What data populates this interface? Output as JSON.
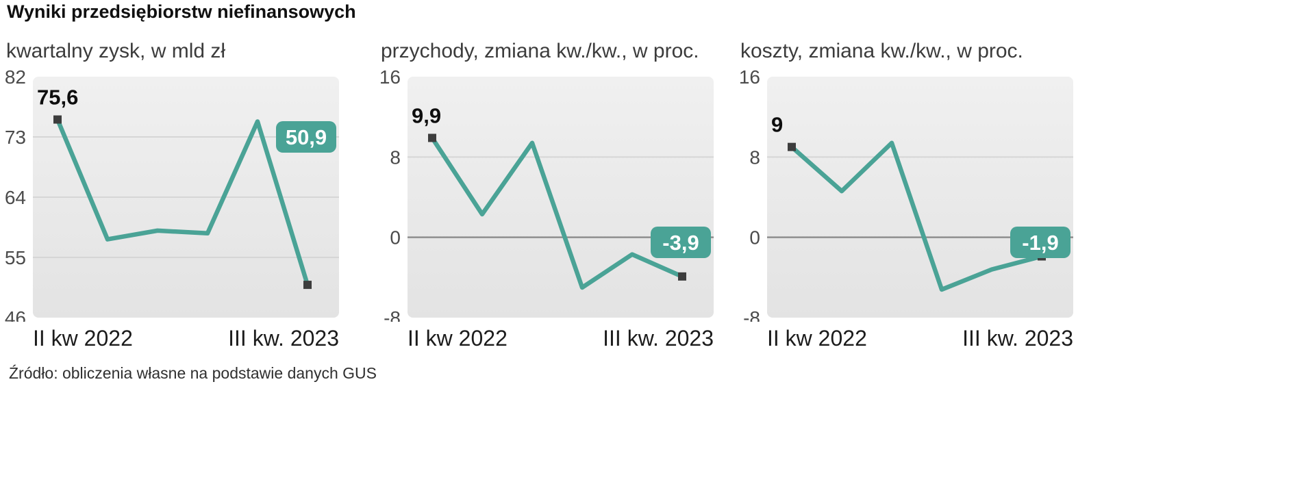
{
  "title": "Wyniki przedsiębiorstw niefinansowych",
  "source": "Źródło: obliczenia własne na podstawie danych GUS",
  "colors": {
    "line": "#4aa396",
    "badge": "#4aa396",
    "marker": "#3d3d3d",
    "plot_bg_top": "#f0f0f0",
    "plot_bg_bottom": "#e3e3e3",
    "grid": "#d6d6d6",
    "zero_line": "#8f8f8f",
    "axis_text": "#4b4b4b",
    "label_text": "#0e0e0e",
    "badge_text": "#ffffff"
  },
  "chart_data": [
    {
      "type": "line",
      "subtitle": "kwartalny zysk, w mld zł",
      "x_label_left": "II kw 2022",
      "x_label_right": "III kw. 2023",
      "y_ticks": [
        82,
        73,
        64,
        55,
        46
      ],
      "ylim": [
        46,
        82
      ],
      "values": [
        75.6,
        57.7,
        59.0,
        58.6,
        75.3,
        50.9
      ],
      "first_label": "75,6",
      "last_label": "50,9",
      "badge_anchor_value": 73,
      "zero_line": false,
      "grid": true,
      "legend": false
    },
    {
      "type": "line",
      "subtitle": "przychody, zmiana kw./kw., w proc.",
      "x_label_left": "II kw 2022",
      "x_label_right": "III kw. 2023",
      "y_ticks": [
        16,
        8,
        0,
        -8
      ],
      "ylim": [
        -8,
        16
      ],
      "values": [
        9.9,
        2.3,
        9.4,
        -5.0,
        -1.7,
        -3.9
      ],
      "first_label": "9,9",
      "last_label": "-3,9",
      "badge_anchor_value": -0.5,
      "zero_line": true,
      "grid": true,
      "legend": false
    },
    {
      "type": "line",
      "subtitle": "koszty, zmiana kw./kw., w proc.",
      "x_label_left": "II kw 2022",
      "x_label_right": "III kw. 2023",
      "y_ticks": [
        16,
        8,
        0,
        -8
      ],
      "ylim": [
        -8,
        16
      ],
      "values": [
        9.0,
        4.6,
        9.4,
        -5.2,
        -3.2,
        -1.9
      ],
      "first_label": "9",
      "last_label": "-1,9",
      "badge_anchor_value": -0.5,
      "zero_line": true,
      "grid": true,
      "legend": false
    }
  ]
}
